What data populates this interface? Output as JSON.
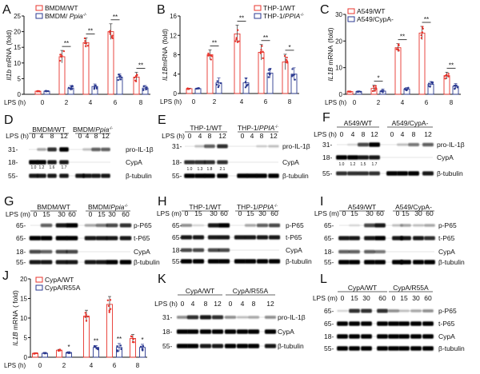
{
  "colors": {
    "wt": "#e8342c",
    "ko": "#2b3990"
  },
  "charts": [
    {
      "id": "A",
      "letter": "A",
      "ylabel": {
        "italic": "Il1b",
        "rest": " mRNA",
        "unit": "(fold)"
      },
      "xlabel": "LPS (h)",
      "categories": [
        "0",
        "2",
        "4",
        "6",
        "8"
      ],
      "ylim": [
        0,
        25
      ],
      "yticks": [
        0,
        5,
        10,
        15,
        20,
        25
      ],
      "legend": [
        {
          "text": "BMDM/WT",
          "italic": "",
          "sup": ""
        },
        {
          "text": "BMDM/ ",
          "italic": "Ppia",
          "sup": "-/-"
        }
      ],
      "series": [
        {
          "name": "BMDM/WT",
          "values": [
            1,
            12,
            16.5,
            20,
            5.5
          ],
          "sd": [
            0.1,
            2,
            1.5,
            2.5,
            1.5
          ]
        },
        {
          "name": "BMDM/ Ppia-/-",
          "values": [
            1,
            2,
            2.5,
            5.5,
            2
          ],
          "sd": [
            0.1,
            0.8,
            0.8,
            1,
            0.8
          ]
        }
      ],
      "significance": [
        "",
        "**",
        "**",
        "**",
        "**"
      ],
      "sig_style": "bracket"
    },
    {
      "id": "B",
      "letter": "B",
      "ylabel": {
        "italic": "IL1B",
        "rest": "mRNA",
        "unit": "(fold)"
      },
      "xlabel": "LPS (h)",
      "categories": [
        "0",
        "2",
        "4",
        "6",
        "8"
      ],
      "ylim": [
        0,
        16
      ],
      "yticks": [
        0,
        4,
        8,
        12,
        16
      ],
      "legend": [
        {
          "text": "THP-1/WT",
          "italic": "",
          "sup": ""
        },
        {
          "text": "THP-1/",
          "italic": "PPIA",
          "sup": "-/-"
        }
      ],
      "series": [
        {
          "name": "THP-1/WT",
          "values": [
            1,
            8,
            12.3,
            8.5,
            6.5
          ],
          "sd": [
            0.1,
            1,
            1.8,
            1.6,
            1.6
          ]
        },
        {
          "name": "THP-1/PPIA-/-",
          "values": [
            1,
            2.2,
            2.2,
            4.2,
            4
          ],
          "sd": [
            0.1,
            1,
            1,
            1,
            1.3
          ]
        }
      ],
      "significance": [
        "",
        "**",
        "**",
        "**",
        "*"
      ],
      "sig_style": "bracket"
    },
    {
      "id": "C",
      "letter": "C",
      "ylabel": {
        "italic": "IL1B",
        "rest": " mRNA",
        "unit": "(fold)"
      },
      "xlabel": "LPS (h)",
      "categories": [
        "0",
        "2",
        "4",
        "6",
        "8"
      ],
      "ylim": [
        0,
        30
      ],
      "yticks": [
        0,
        10,
        20,
        30
      ],
      "legend": [
        {
          "text": "A549/WT",
          "italic": "",
          "sup": ""
        },
        {
          "text": "A549/CypA-",
          "italic": "",
          "sup": ""
        }
      ],
      "series": [
        {
          "name": "A549/WT",
          "values": [
            1,
            2.2,
            17.5,
            23,
            7
          ],
          "sd": [
            0.1,
            1.2,
            1.5,
            2.5,
            1.3
          ]
        },
        {
          "name": "A549/CypA-",
          "values": [
            1,
            1.2,
            2,
            3.8,
            3
          ],
          "sd": [
            0.1,
            0.8,
            0.5,
            1,
            1
          ]
        }
      ],
      "significance": [
        "",
        "*",
        "**",
        "**",
        "**"
      ],
      "sig_style": "bracket"
    },
    {
      "id": "J",
      "letter": "J",
      "ylabel": {
        "italic": "IL1B",
        "rest": " mRNA",
        "unit": "( fold)"
      },
      "xlabel": "LPS (h)",
      "categories": [
        "0",
        "2",
        "4",
        "6",
        "8"
      ],
      "ylim": [
        0,
        20
      ],
      "yticks": [
        0,
        5,
        10,
        15,
        20
      ],
      "legend": [
        {
          "text": "CypA/WT",
          "italic": "",
          "sup": ""
        },
        {
          "text": "CypA/R55A",
          "italic": "",
          "sup": ""
        }
      ],
      "series": [
        {
          "name": "CypA/WT",
          "values": [
            1,
            1.8,
            10.5,
            13.5,
            4.8
          ],
          "sd": [
            0.1,
            0.2,
            1.5,
            2,
            1
          ]
        },
        {
          "name": "CypA/R55A",
          "values": [
            1,
            1.2,
            2.5,
            2.5,
            2.5
          ],
          "sd": [
            0.1,
            0.2,
            0.5,
            1,
            0.8
          ]
        }
      ],
      "significance": [
        "",
        "*",
        "**",
        "**",
        "*"
      ],
      "sig_style": "star"
    }
  ],
  "blots": [
    {
      "id": "D",
      "letter": "D",
      "lps_label": "LPS (h)",
      "groups": [
        {
          "text": "BMDM/WT",
          "italic": "",
          "sup": ""
        },
        {
          "text": "BMDM/",
          "italic": "Ppia",
          "sup": "-/-"
        }
      ],
      "lanes": [
        "0",
        "4",
        "8",
        "12",
        "0",
        "4",
        "8",
        "12"
      ],
      "bands": [
        {
          "name": "pro-IL-1β",
          "marker": "31-",
          "intensity": [
            0,
            0.3,
            0.8,
            1,
            0,
            0.2,
            0.6,
            0.6
          ]
        },
        {
          "name": "CypA",
          "marker": "18-",
          "intensity": [
            1,
            1,
            0.9,
            0.9,
            0,
            0,
            0,
            0
          ],
          "quant": [
            "1.0",
            "1.2",
            "1.6",
            "1.7"
          ]
        },
        {
          "name": "β-tubulin",
          "marker": "55-",
          "intensity": [
            0.9,
            0.9,
            0.9,
            0.9,
            0.9,
            0.9,
            0.9,
            0.9
          ]
        }
      ]
    },
    {
      "id": "E",
      "letter": "E",
      "lps_label": "LPS (h)",
      "groups": [
        {
          "text": "THP-1/WT",
          "italic": "",
          "sup": ""
        },
        {
          "text": "THP-1/",
          "italic": "PPIA",
          "sup": "-/-"
        }
      ],
      "lanes": [
        "0",
        "4",
        "8",
        "12",
        "0",
        "4",
        "8",
        "12"
      ],
      "bands": [
        {
          "name": "pro-IL-1β",
          "marker": "31-",
          "intensity": [
            0,
            0.2,
            0.6,
            0.8,
            0,
            0,
            0.15,
            0.2
          ]
        },
        {
          "name": "CypA",
          "marker": "18-",
          "intensity": [
            0.8,
            0.8,
            0.8,
            0.8,
            0,
            0,
            0,
            0
          ],
          "quant": [
            "1.0",
            "1.3",
            "1.8",
            "2.1"
          ]
        },
        {
          "name": "β-tubulin",
          "marker": "55-",
          "intensity": [
            1,
            1,
            1,
            1,
            1,
            1,
            1,
            1
          ]
        }
      ]
    },
    {
      "id": "F",
      "letter": "F",
      "lps_label": "LPS (h)",
      "groups": [
        {
          "text": "A549/WT",
          "italic": "",
          "sup": ""
        },
        {
          "text": "A549/CypA-",
          "italic": "",
          "sup": ""
        }
      ],
      "lanes": [
        "0",
        "4",
        "8",
        "12",
        "0",
        "4",
        "8",
        "12"
      ],
      "bands": [
        {
          "name": "pro-IL-1β",
          "marker": "31-",
          "intensity": [
            0,
            0.1,
            0.7,
            1,
            0,
            0.2,
            0.5,
            0.6
          ]
        },
        {
          "name": "CypA",
          "marker": "18-",
          "intensity": [
            1,
            1,
            0.9,
            0.9,
            0,
            0,
            0,
            0
          ],
          "quant": [
            "1.0",
            "1.2",
            "1.5",
            "1.7"
          ]
        },
        {
          "name": "β-tubulin",
          "marker": "55-",
          "intensity": [
            0.8,
            0.8,
            0.8,
            0.8,
            1,
            1,
            1,
            0.9
          ]
        }
      ]
    },
    {
      "id": "G",
      "letter": "G",
      "lps_label": "LPS (m)",
      "groups": [
        {
          "text": "BMDM/WT",
          "italic": "",
          "sup": ""
        },
        {
          "text": "BMDM/",
          "italic": "Ppia",
          "sup": "-/-"
        }
      ],
      "lanes": [
        "0",
        "15",
        "30",
        "60",
        "0",
        "15",
        "30",
        "60"
      ],
      "bands": [
        {
          "name": "p-P65",
          "marker": "65-",
          "intensity": [
            0,
            0.6,
            0.9,
            1,
            0.3,
            0.5,
            0.7,
            0.8
          ]
        },
        {
          "name": "t-P65",
          "marker": "65-",
          "intensity": [
            1,
            1,
            1,
            1,
            0.9,
            0.9,
            0.9,
            0.9
          ]
        },
        {
          "name": "CypA",
          "marker": "18-",
          "intensity": [
            0.7,
            0.6,
            0.7,
            0.7,
            0,
            0,
            0,
            0
          ]
        },
        {
          "name": "β-tubulin",
          "marker": "55-",
          "intensity": [
            0.9,
            0.9,
            0.9,
            0.9,
            0.9,
            0.9,
            1,
            1
          ]
        }
      ]
    },
    {
      "id": "H",
      "letter": "H",
      "lps_label": "LPS (m)",
      "groups": [
        {
          "text": "THP-1/WT",
          "italic": "",
          "sup": ""
        },
        {
          "text": "THP-1/",
          "italic": "PPIA",
          "sup": "-/-"
        }
      ],
      "lanes": [
        "0",
        "15",
        "30",
        "60",
        "0",
        "15",
        "30",
        "60"
      ],
      "bands": [
        {
          "name": "p-P65",
          "marker": "65-",
          "intensity": [
            0.4,
            0.1,
            0.9,
            1,
            0,
            0.3,
            0.6,
            0.7
          ]
        },
        {
          "name": "t-P65",
          "marker": "65-",
          "intensity": [
            0.9,
            0.9,
            0.9,
            0.9,
            0.9,
            0.9,
            0.9,
            0.9
          ]
        },
        {
          "name": "CypA",
          "marker": "18-",
          "intensity": [
            0.7,
            0.7,
            0.7,
            0.7,
            0,
            0,
            0,
            0
          ]
        },
        {
          "name": "β-tubulin",
          "marker": "55-",
          "intensity": [
            1,
            1,
            1,
            1,
            1,
            1,
            1,
            1
          ]
        }
      ]
    },
    {
      "id": "I",
      "letter": "I",
      "lps_label": "LPS (m)",
      "groups": [
        {
          "text": "A549/WT",
          "italic": "",
          "sup": ""
        },
        {
          "text": "A549/CypA-",
          "italic": "",
          "sup": ""
        }
      ],
      "lanes": [
        "0",
        "15",
        "30",
        "60",
        "0",
        "15",
        "30",
        "60"
      ],
      "bands": [
        {
          "name": "p-P65",
          "marker": "65-",
          "intensity": [
            0,
            0.1,
            0.7,
            0.9,
            0.2,
            0.3,
            0.2,
            0.3
          ]
        },
        {
          "name": "t-P65",
          "marker": "65-",
          "intensity": [
            0.9,
            0.9,
            0.9,
            1,
            0.9,
            0.9,
            0.9,
            0.8
          ]
        },
        {
          "name": "CypA",
          "marker": "18-",
          "intensity": [
            0.6,
            0.6,
            0.6,
            0.5,
            0,
            0,
            0,
            0
          ]
        },
        {
          "name": "β-tubulin",
          "marker": "55-",
          "intensity": [
            1,
            1,
            1,
            1,
            1,
            1,
            1,
            1
          ]
        }
      ]
    },
    {
      "id": "K",
      "letter": "K",
      "lps_label": "LPS (h)",
      "groups": [
        {
          "text": "CypA/WT",
          "italic": "",
          "sup": ""
        },
        {
          "text": "CypA/R55A",
          "italic": "",
          "sup": ""
        }
      ],
      "lanes": [
        "0",
        "4",
        "8",
        "12",
        "0",
        "4",
        "8",
        "12"
      ],
      "bands": [
        {
          "name": "pro-IL-1β",
          "marker": "31-",
          "intensity": [
            0.4,
            0.8,
            0.9,
            0.8,
            0.4,
            0.2,
            0.3,
            0.4
          ]
        },
        {
          "name": "CypA",
          "marker": "18-",
          "intensity": [
            1,
            1,
            1,
            1,
            1,
            1,
            1,
            1
          ]
        },
        {
          "name": "β-tubulin",
          "marker": "55-",
          "intensity": [
            1,
            1,
            0.9,
            0.9,
            1,
            1,
            1,
            0.9
          ]
        }
      ]
    },
    {
      "id": "L",
      "letter": "L",
      "lps_label": "LPS (m)",
      "groups": [
        {
          "text": "CypA/WT",
          "italic": "",
          "sup": ""
        },
        {
          "text": "CypA/R55A",
          "italic": "",
          "sup": ""
        }
      ],
      "lanes": [
        "0",
        "15",
        "30",
        "60",
        "0",
        "15",
        "30",
        "60"
      ],
      "bands": [
        {
          "name": "p-P65",
          "marker": "65-",
          "intensity": [
            0.1,
            0.8,
            0.8,
            0.8,
            0.4,
            0.2,
            0.3,
            0.4
          ]
        },
        {
          "name": "t-P65",
          "marker": "65-",
          "intensity": [
            1,
            1,
            1,
            1,
            1,
            1,
            1,
            1
          ]
        },
        {
          "name": "CypA",
          "marker": "18-",
          "intensity": [
            1,
            1,
            1,
            1,
            1,
            1,
            1,
            1
          ]
        },
        {
          "name": "β-tubulin",
          "marker": "55-",
          "intensity": [
            1,
            1,
            1,
            1,
            1,
            1,
            1,
            1
          ]
        }
      ]
    }
  ]
}
